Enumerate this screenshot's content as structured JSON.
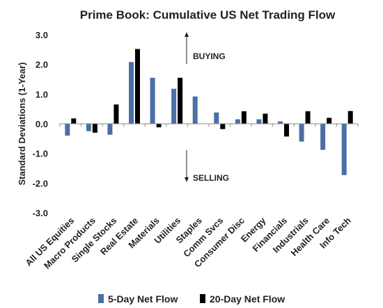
{
  "chart_data": {
    "type": "bar",
    "title": "Prime Book: Cumulative US Net Trading Flow",
    "ylabel": "Standard Deviations (1-Year)",
    "xlabel": "",
    "ylim": [
      -3.0,
      3.0
    ],
    "yticks": [
      "3.0",
      "2.0",
      "1.0",
      "0.0",
      "-1.0",
      "-2.0",
      "-3.0"
    ],
    "grid": false,
    "legend_position": "bottom",
    "categories": [
      "All US Equities",
      "Macro Products",
      "Single Stocks",
      "Real Estate",
      "Materials",
      "Utilities",
      "Staples",
      "Comm Svcs",
      "Consumer Disc",
      "Energy",
      "Financials",
      "Industrials",
      "Health Care",
      "Info Tech"
    ],
    "series": [
      {
        "name": "5-Day Net Flow",
        "color": "#4a6fa5",
        "values": [
          -0.4,
          -0.25,
          -0.37,
          2.08,
          1.55,
          1.18,
          0.92,
          0.38,
          0.15,
          0.15,
          0.08,
          -0.6,
          -0.88,
          -1.73
        ]
      },
      {
        "name": "20-Day Net Flow",
        "color": "#000000",
        "values": [
          0.18,
          -0.3,
          0.65,
          2.52,
          -0.12,
          1.55,
          0.0,
          -0.18,
          0.42,
          0.34,
          -0.43,
          0.42,
          0.2,
          0.43
        ]
      }
    ],
    "annotations": {
      "buying": "BUYING",
      "selling": "SELLING"
    }
  }
}
